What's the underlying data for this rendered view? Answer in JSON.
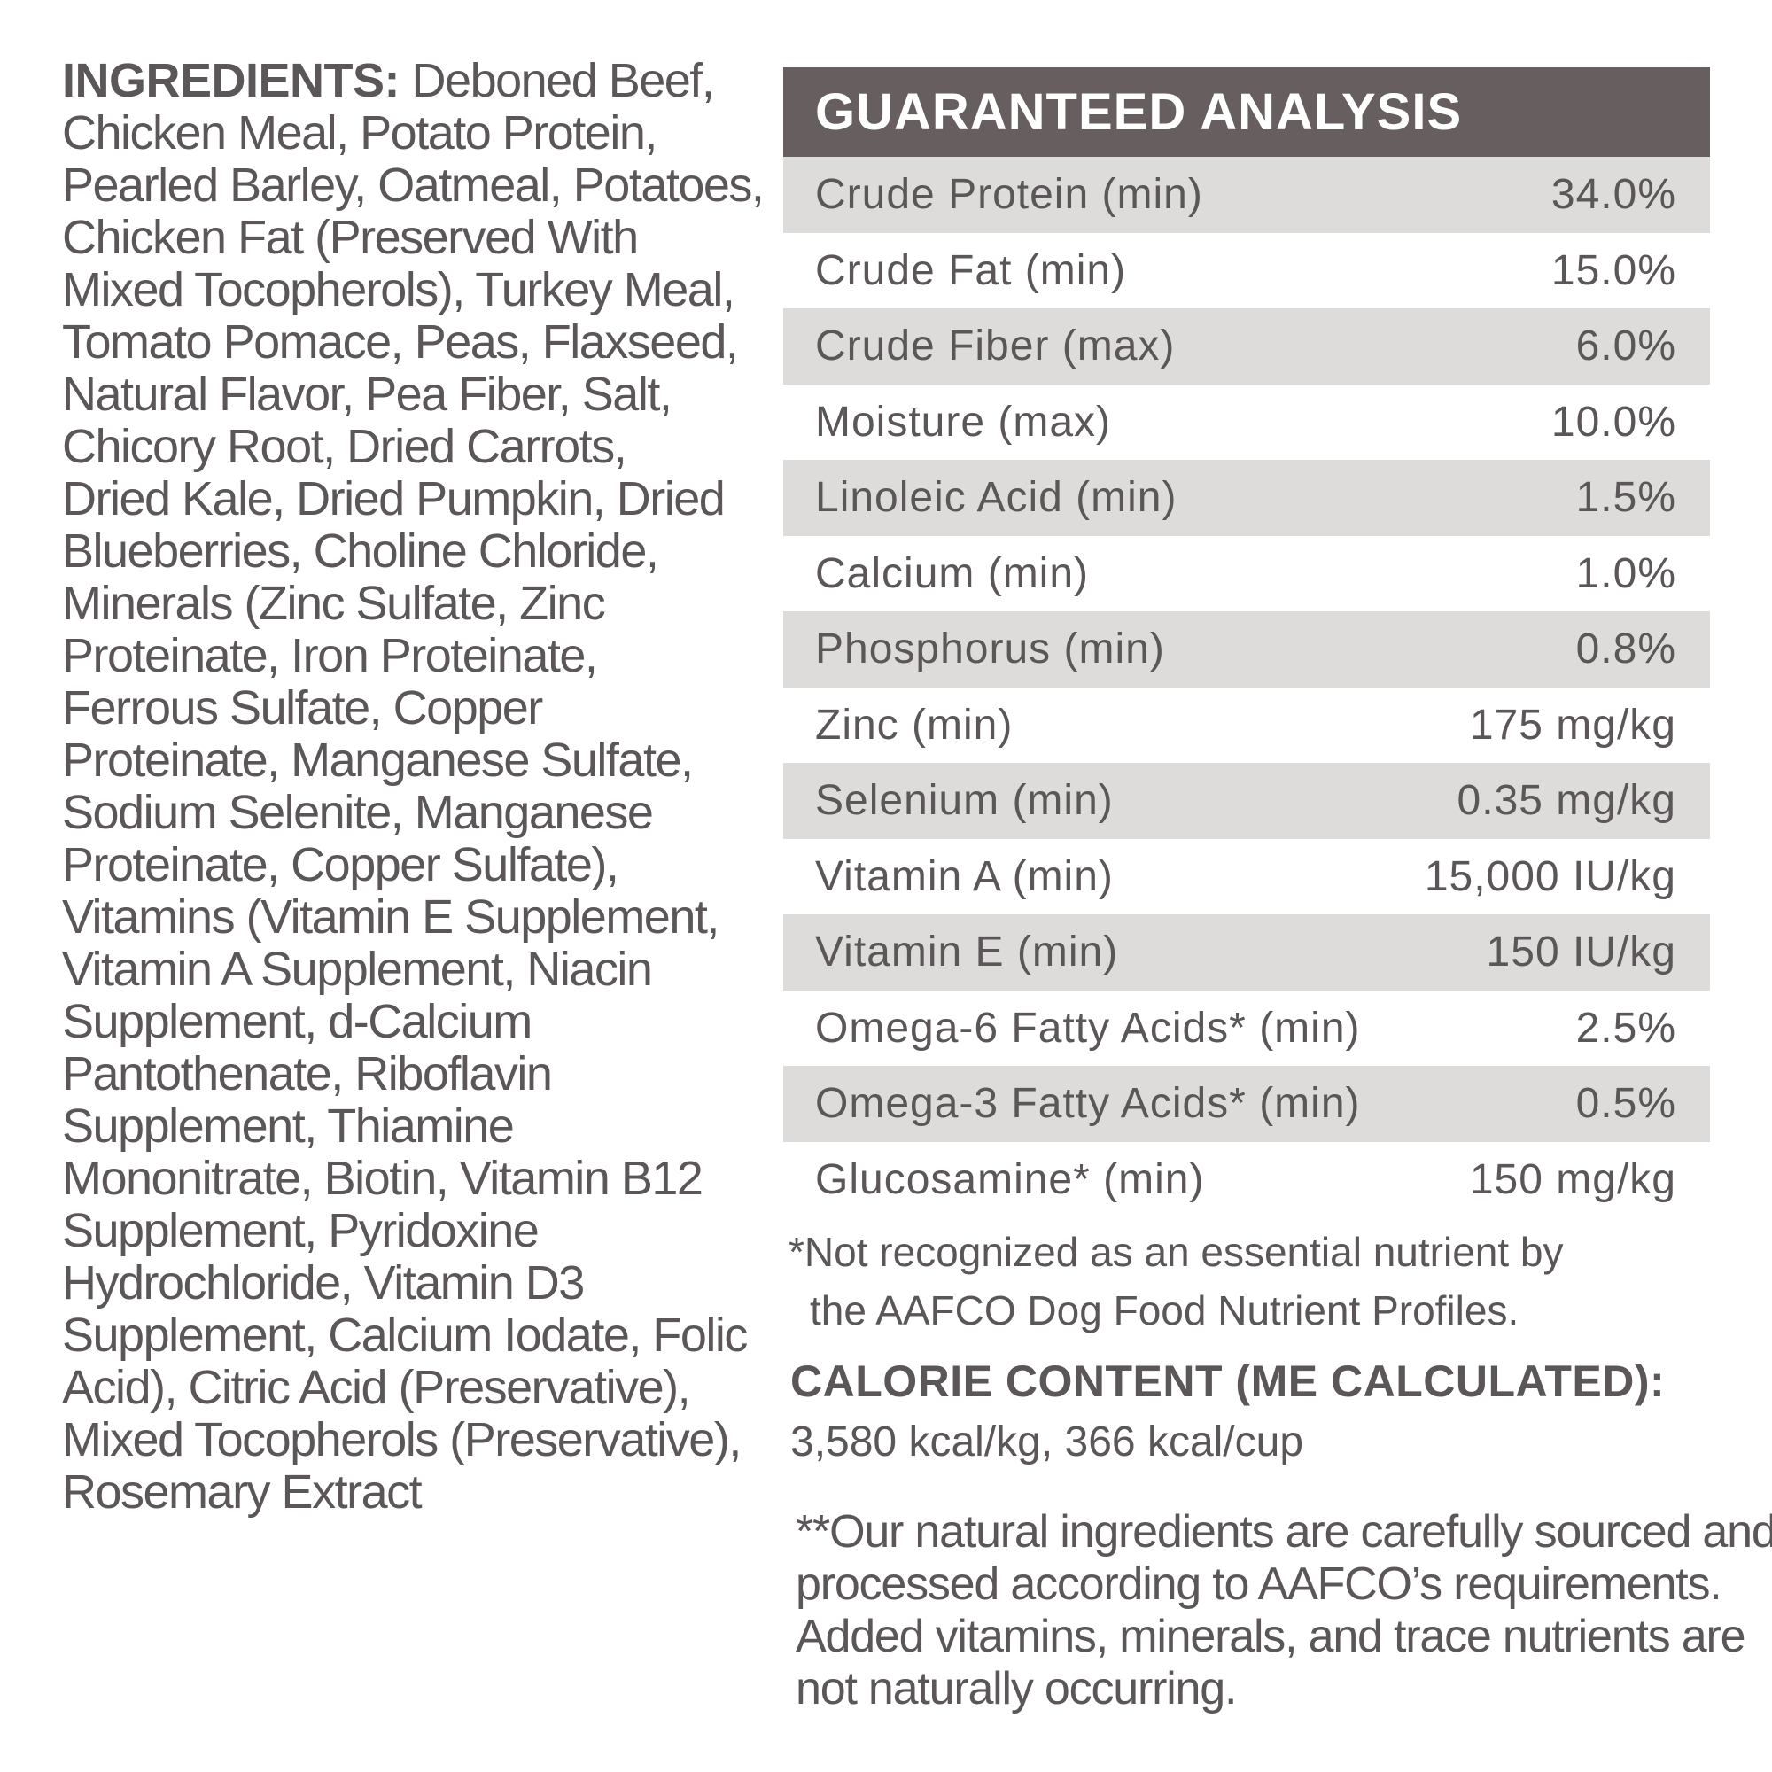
{
  "ingredients": {
    "label": "INGREDIENTS:",
    "lines": [
      " Deboned Beef,",
      "Chicken Meal, Potato Protein,",
      "Pearled Barley, Oatmeal, Potatoes,",
      "Chicken Fat (Preserved With",
      "Mixed Tocopherols), Turkey Meal,",
      "Tomato Pomace, Peas, Flaxseed,",
      "Natural Flavor, Pea Fiber, Salt,",
      "Chicory Root, Dried Carrots,",
      "Dried Kale, Dried Pumpkin, Dried",
      "Blueberries, Choline Chloride,",
      "Minerals (Zinc Sulfate, Zinc",
      "Proteinate, Iron Proteinate,",
      "Ferrous Sulfate, Copper",
      "Proteinate, Manganese Sulfate,",
      "Sodium Selenite, Manganese",
      "Proteinate, Copper Sulfate),",
      "Vitamins (Vitamin E Supplement,",
      "Vitamin A Supplement, Niacin",
      "Supplement, d-Calcium",
      "Pantothenate, Riboflavin",
      "Supplement, Thiamine",
      "Mononitrate, Biotin, Vitamin B12",
      "Supplement, Pyridoxine",
      "Hydrochloride, Vitamin D3",
      "Supplement, Calcium Iodate, Folic",
      "Acid), Citric Acid (Preservative),",
      "Mixed Tocopherols (Preservative),",
      "Rosemary Extract"
    ]
  },
  "guaranteed_analysis": {
    "title": "GUARANTEED ANALYSIS",
    "rows": [
      {
        "name": "Crude Protein (min)",
        "value": "34.0%"
      },
      {
        "name": "Crude Fat (min)",
        "value": "15.0%"
      },
      {
        "name": "Crude Fiber (max)",
        "value": "6.0%"
      },
      {
        "name": "Moisture (max)",
        "value": "10.0%"
      },
      {
        "name": "Linoleic Acid (min)",
        "value": "1.5%"
      },
      {
        "name": "Calcium (min)",
        "value": "1.0%"
      },
      {
        "name": "Phosphorus (min)",
        "value": "0.8%"
      },
      {
        "name": "Zinc (min)",
        "value": "175 mg/kg"
      },
      {
        "name": "Selenium (min)",
        "value": "0.35 mg/kg"
      },
      {
        "name": "Vitamin A (min)",
        "value": "15,000 IU/kg"
      },
      {
        "name": "Vitamin E (min)",
        "value": "150 IU/kg"
      },
      {
        "name": "Omega-6 Fatty Acids* (min)",
        "value": "2.5%"
      },
      {
        "name": "Omega-3 Fatty Acids* (min)",
        "value": "0.5%"
      },
      {
        "name": "Glucosamine* (min)",
        "value": "150 mg/kg"
      }
    ],
    "footnote_lines": [
      "*Not recognized as an essential nutrient by",
      "the AAFCO Dog Food Nutrient Profiles."
    ]
  },
  "calorie": {
    "title": "CALORIE CONTENT (ME CALCULATED):",
    "value": "3,580 kcal/kg, 366 kcal/cup"
  },
  "note_lines": [
    "**Our natural ingredients are carefully sourced and",
    "processed according to AAFCO’s requirements.",
    "Added vitamins, minerals, and trace nutrients are",
    "not naturally occurring."
  ],
  "colors": {
    "header_bg": "#665e5f",
    "stripe": "#dedbdb",
    "text": "#5b5657"
  }
}
